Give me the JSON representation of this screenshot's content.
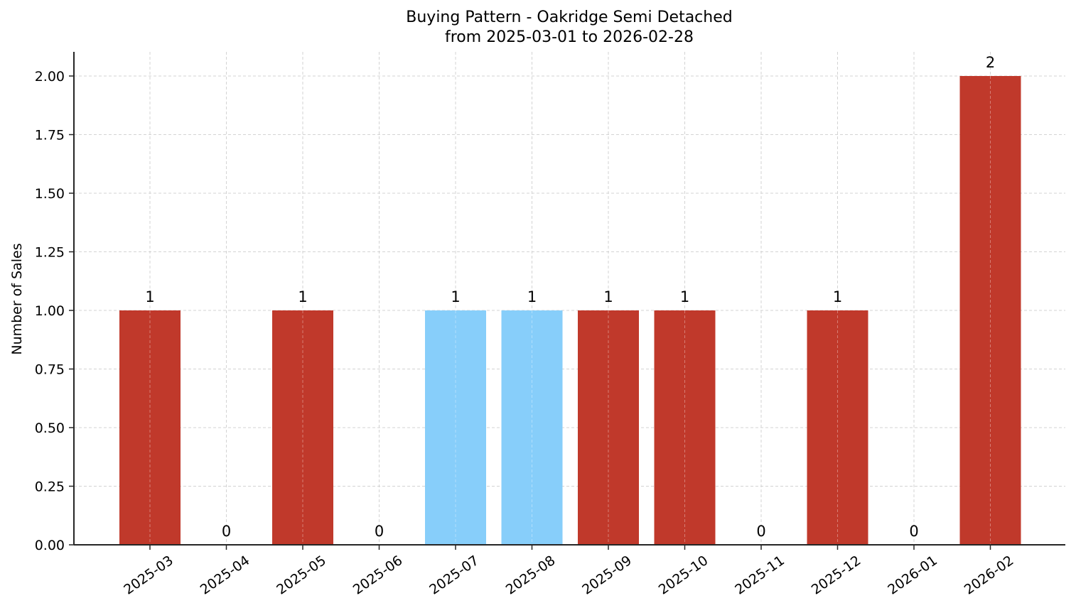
{
  "chart_data": {
    "type": "bar",
    "title": "Buying Pattern - Oakridge Semi Detached",
    "subtitle": "from 2025-03-01 to 2026-02-28",
    "xlabel": "",
    "ylabel": "Number of Sales",
    "categories": [
      "2025-03",
      "2025-04",
      "2025-05",
      "2025-06",
      "2025-07",
      "2025-08",
      "2025-09",
      "2025-10",
      "2025-11",
      "2025-12",
      "2026-01",
      "2026-02"
    ],
    "values": [
      1,
      0,
      1,
      0,
      1,
      1,
      1,
      1,
      0,
      1,
      0,
      2
    ],
    "bar_colors": [
      "#c0392b",
      "#c0392b",
      "#c0392b",
      "#c0392b",
      "#87cefa",
      "#87cefa",
      "#c0392b",
      "#c0392b",
      "#c0392b",
      "#c0392b",
      "#c0392b",
      "#c0392b"
    ],
    "data_labels": [
      "1",
      "0",
      "1",
      "0",
      "1",
      "1",
      "1",
      "1",
      "0",
      "1",
      "0",
      "2"
    ],
    "ylim": [
      0,
      2.1
    ],
    "yticks": [
      "0.00",
      "0.25",
      "0.50",
      "0.75",
      "1.00",
      "1.25",
      "1.50",
      "1.75",
      "2.00"
    ],
    "grid": true,
    "legend": null
  },
  "colors": {
    "primary_bar": "#c0392b",
    "highlight_bar": "#87cefa",
    "grid": "#d3d3d3",
    "axis": "#262626"
  }
}
